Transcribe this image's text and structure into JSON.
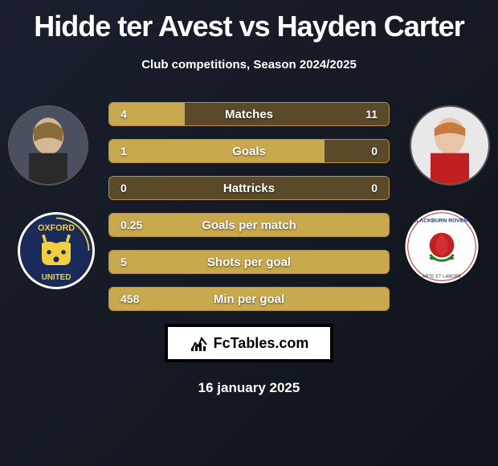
{
  "title": "Hidde ter Avest vs Hayden Carter",
  "subtitle": "Club competitions, Season 2024/2025",
  "date": "16 january 2025",
  "brand": "FcTables.com",
  "colors": {
    "bar_fill": "#c9a94e",
    "bar_bg": "#5a4a2a",
    "bar_border": "#b8923e"
  },
  "bars": [
    {
      "label": "Matches",
      "left_val": "4",
      "right_val": "11",
      "left_pct": 27,
      "right_pct": 0
    },
    {
      "label": "Goals",
      "left_val": "1",
      "right_val": "0",
      "left_pct": 77,
      "right_pct": 0
    },
    {
      "label": "Hattricks",
      "left_val": "0",
      "right_val": "0",
      "left_pct": 0,
      "right_pct": 0
    },
    {
      "label": "Goals per match",
      "left_val": "0.25",
      "right_val": "",
      "left_pct": 100,
      "right_pct": 0
    },
    {
      "label": "Shots per goal",
      "left_val": "5",
      "right_val": "",
      "left_pct": 100,
      "right_pct": 0
    },
    {
      "label": "Min per goal",
      "left_val": "458",
      "right_val": "",
      "left_pct": 100,
      "right_pct": 0
    }
  ],
  "players": {
    "left": {
      "name": "Hidde ter Avest",
      "club": "Oxford United"
    },
    "right": {
      "name": "Hayden Carter",
      "club": "Blackburn Rovers"
    }
  }
}
